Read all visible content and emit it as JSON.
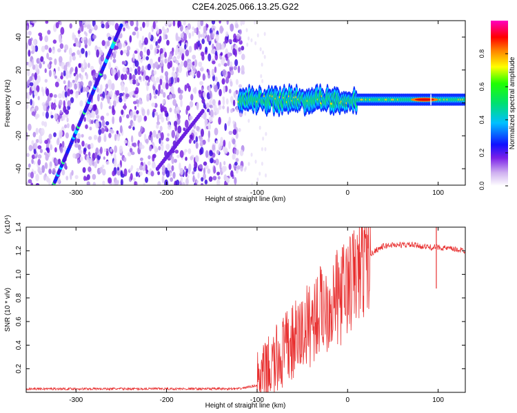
{
  "title": "C2E4.2025.066.13.25.G22",
  "chart_data": [
    {
      "type": "heatmap",
      "xlabel": "Height of straight line (km)",
      "ylabel": "Frequency (Hz)",
      "xlim": [
        -355,
        130
      ],
      "ylim": [
        -50,
        50
      ],
      "xticks": [
        -300,
        -200,
        -100,
        0,
        100
      ],
      "yticks": [
        -40,
        -20,
        0,
        20,
        40
      ],
      "colorbar": {
        "label": "Normalized spectral amplitude",
        "range": [
          0,
          1
        ],
        "ticks": [
          "0.0",
          "0.2",
          "0.4",
          "0.6",
          "0.8"
        ],
        "colormap": "white-purple-blue-cyan-green-yellow-red-magenta"
      },
      "features": {
        "noise_region_x": [
          -355,
          -115
        ],
        "diagonal_line": {
          "from": [
            -325,
            -50
          ],
          "to": [
            -250,
            47
          ]
        },
        "diagonal_line_faint": {
          "from": [
            -210,
            -40
          ],
          "to": [
            -160,
            -5
          ]
        },
        "signal_band_center_freq": 2,
        "signal_band_x": [
          -120,
          130
        ],
        "signal_peak_x": 85
      },
      "colors": {
        "signal": "#e00000",
        "noise": "#7c24e0",
        "band": "#00e070"
      }
    },
    {
      "type": "line",
      "xlabel": "Height of straight line (km)",
      "ylabel": "SNR (10 * v/v)",
      "y_multiplier": "(x10⁴)",
      "xlim": [
        -355,
        130
      ],
      "ylim": [
        0,
        1.4
      ],
      "xticks": [
        -300,
        -200,
        -100,
        0,
        100
      ],
      "yticks": [
        "0.2",
        "0.4",
        "0.6",
        "0.8",
        "1.0",
        "1.2",
        "1.4"
      ],
      "color": "#e83030",
      "x": [
        -355,
        -120,
        -100,
        -90,
        -80,
        -70,
        -60,
        -50,
        -40,
        -30,
        -20,
        -10,
        0,
        10,
        20,
        30,
        40,
        50,
        60,
        70,
        80,
        90,
        100,
        110,
        120,
        130
      ],
      "y": [
        0.03,
        0.03,
        0.06,
        0.15,
        0.25,
        0.35,
        0.42,
        0.5,
        0.6,
        0.7,
        0.75,
        0.8,
        0.9,
        1.0,
        1.12,
        1.2,
        1.24,
        1.25,
        1.25,
        1.25,
        1.24,
        1.23,
        1.23,
        1.22,
        1.21,
        1.2
      ],
      "spikes": [
        {
          "x": 98,
          "y": 1.45
        },
        {
          "x": 98,
          "y": 0.88
        }
      ]
    }
  ]
}
